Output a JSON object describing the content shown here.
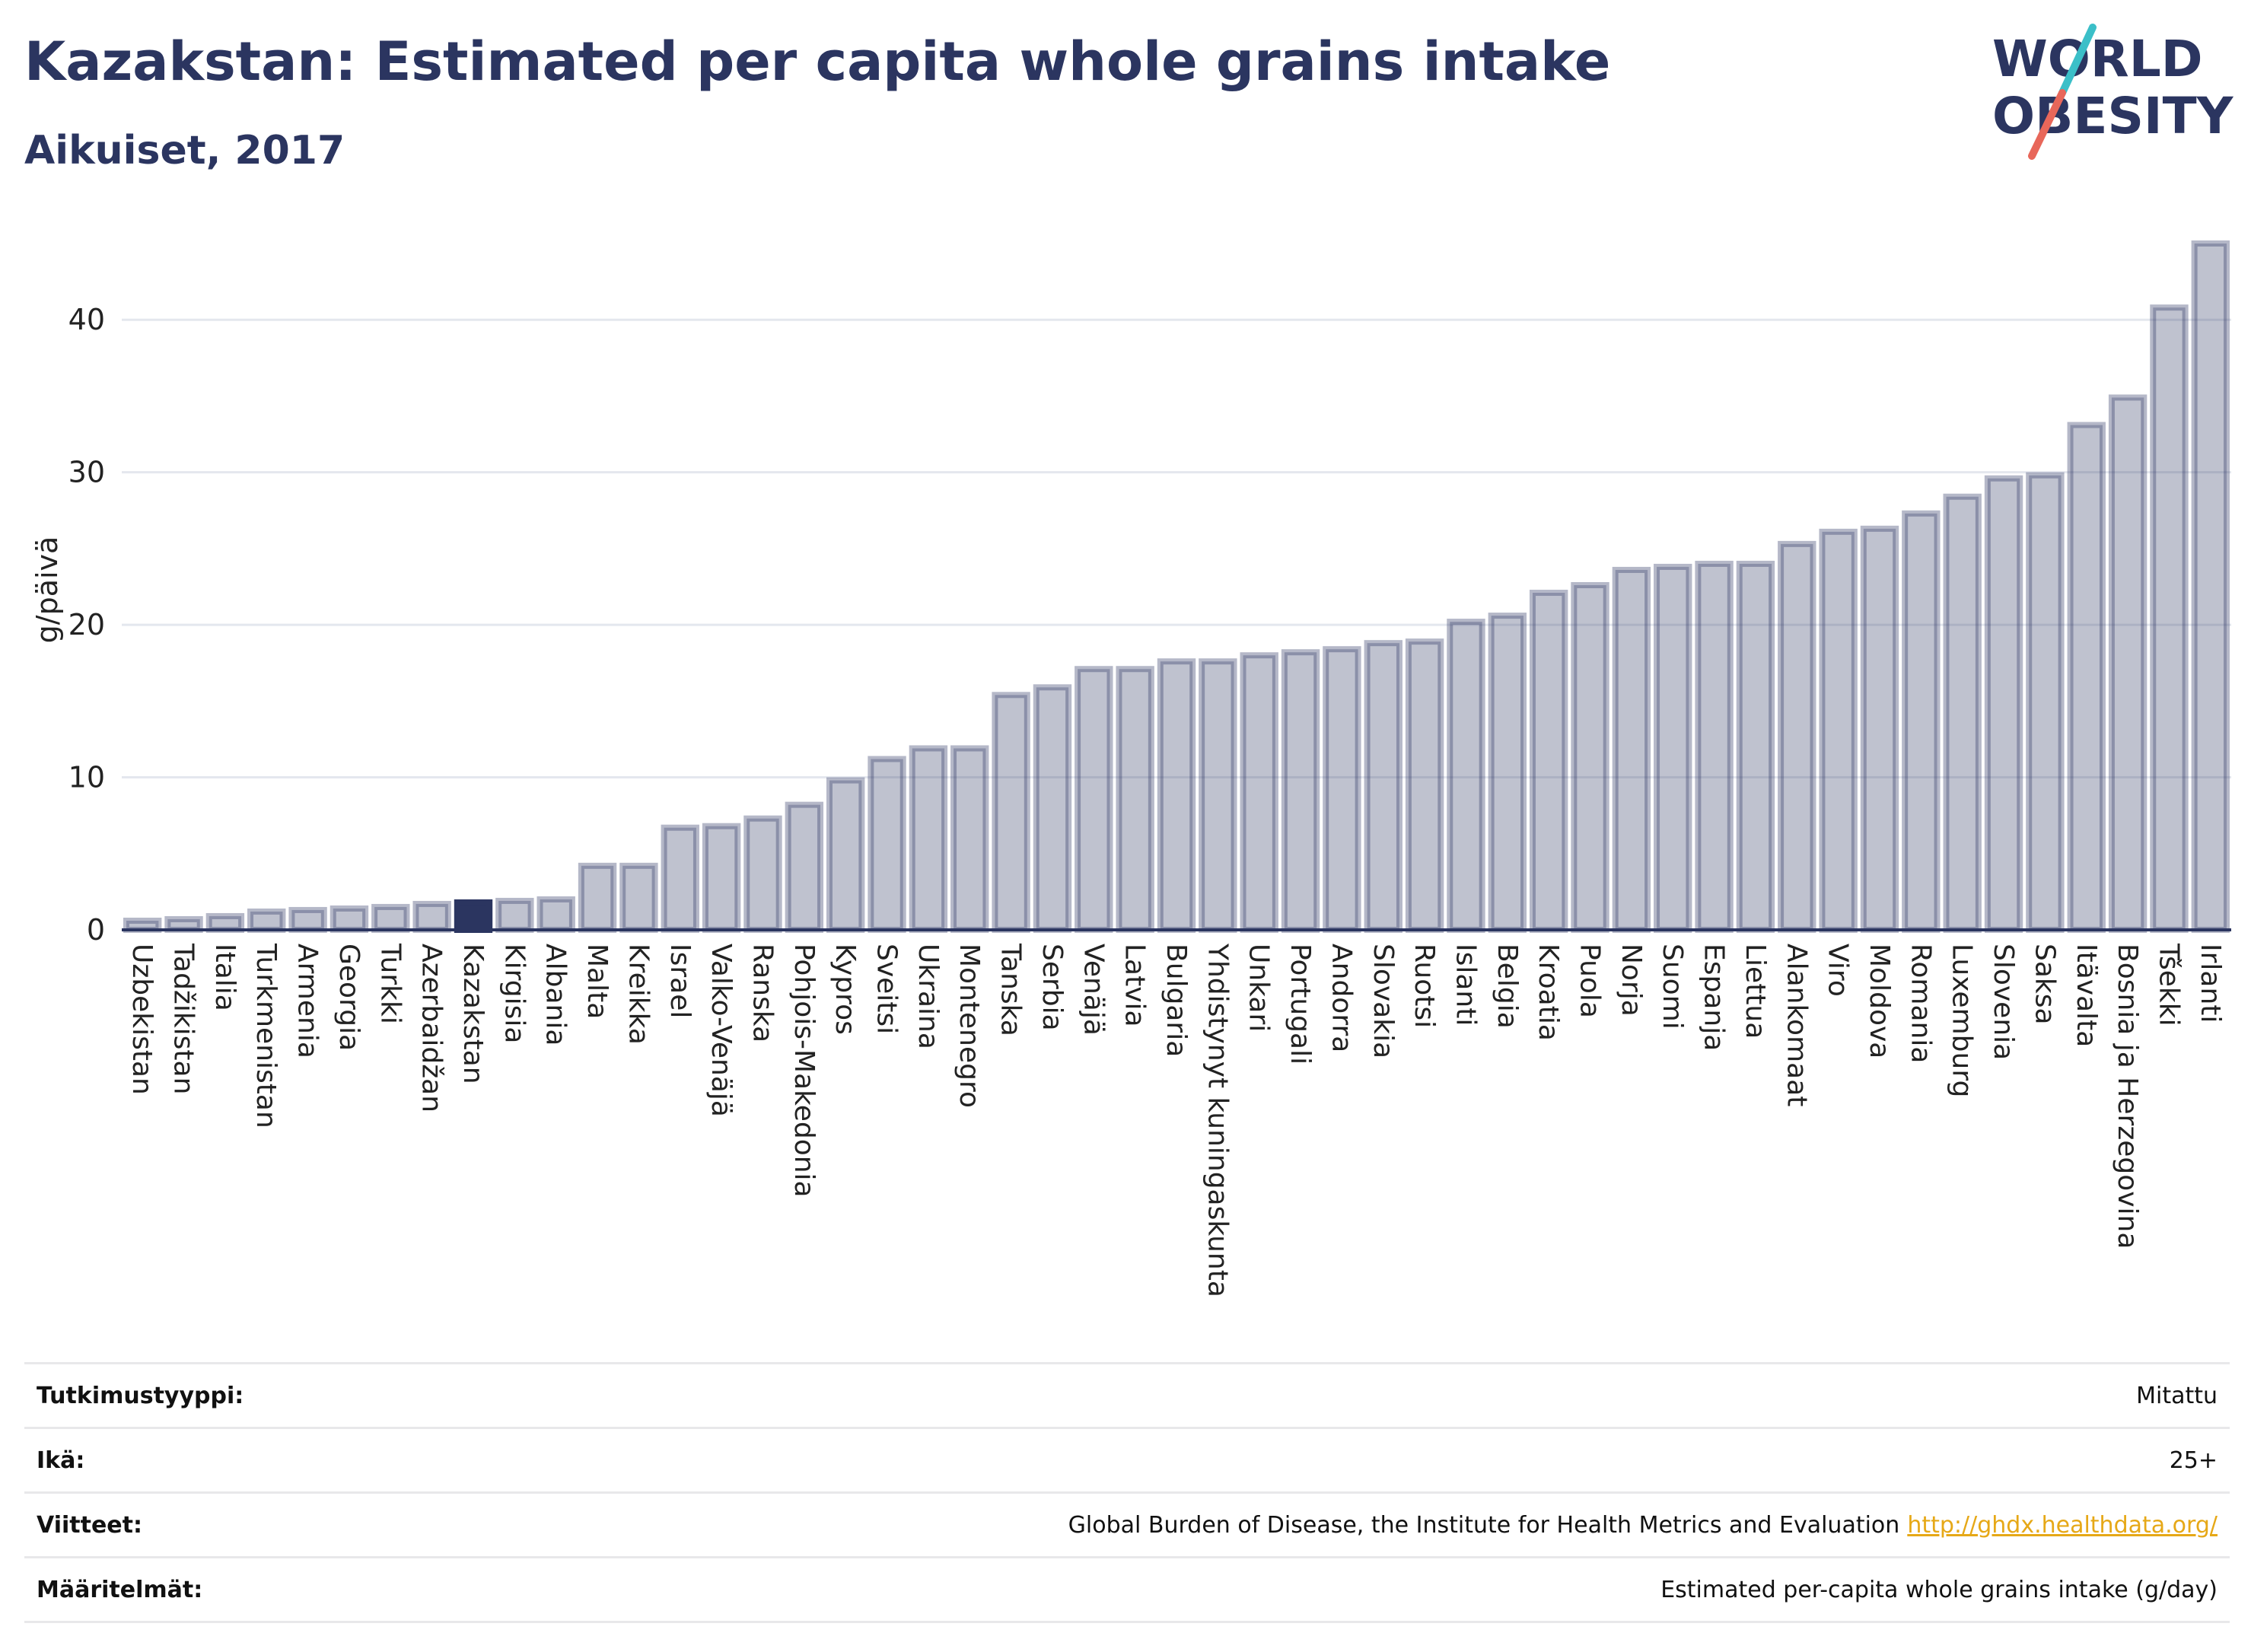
{
  "header": {
    "title": "Kazakstan: Estimated per capita whole grains intake",
    "subtitle": "Aikuiset, 2017"
  },
  "logo": {
    "line1": "WORLD",
    "line2": "OBESITY",
    "accent_red": "#e8675a",
    "accent_teal": "#3bbfc8"
  },
  "colors": {
    "bar": "#2b3560",
    "highlight": "#2b3560"
  },
  "chart_data": {
    "type": "bar",
    "ylabel": "g/päivä",
    "ylim": [
      0,
      45
    ],
    "yticks": [
      0,
      10,
      20,
      30,
      40
    ],
    "grid": true,
    "highlight": "Kazakstan",
    "categories": [
      "Uzbekistan",
      "Tadžikistan",
      "Italia",
      "Turkmenistan",
      "Armenia",
      "Georgia",
      "Turkki",
      "Azerbaidžan",
      "Kazakstan",
      "Kirgisia",
      "Albania",
      "Malta",
      "Kreikka",
      "Israel",
      "Valko-Venäjä",
      "Ranska",
      "Pohjois-Makedonia",
      "Kypros",
      "Sveitsi",
      "Ukraina",
      "Montenegro",
      "Tanska",
      "Serbia",
      "Venäjä",
      "Latvia",
      "Bulgaria",
      "Yhdistynyt kuningaskunta",
      "Unkari",
      "Portugali",
      "Andorra",
      "Slovakia",
      "Ruotsi",
      "Islanti",
      "Belgia",
      "Kroatia",
      "Puola",
      "Norja",
      "Suomi",
      "Espanja",
      "Liettua",
      "Alankomaat",
      "Viro",
      "Moldova",
      "Romania",
      "Luxemburg",
      "Slovenia",
      "Saksa",
      "Itävalta",
      "Bosnia ja Herzegovina",
      "Tšekki",
      "Irlanti"
    ],
    "values": [
      0.6,
      0.7,
      0.9,
      1.2,
      1.3,
      1.4,
      1.5,
      1.7,
      1.8,
      1.9,
      2.0,
      4.2,
      4.2,
      6.7,
      6.8,
      7.3,
      8.2,
      9.8,
      11.2,
      11.9,
      11.9,
      15.4,
      15.9,
      17.1,
      17.1,
      17.6,
      17.6,
      18.0,
      18.2,
      18.4,
      18.8,
      18.9,
      20.2,
      20.6,
      22.1,
      22.6,
      23.6,
      23.8,
      24.0,
      24.0,
      25.3,
      26.1,
      26.3,
      27.3,
      28.4,
      29.6,
      29.8,
      33.1,
      34.9,
      40.8,
      45.0
    ]
  },
  "info": {
    "rows": [
      {
        "label": "Tutkimustyyppi:",
        "value": "Mitattu"
      },
      {
        "label": "Ikä:",
        "value": "25+"
      },
      {
        "label": "Viitteet:",
        "value": "Global Burden of Disease, the Institute for Health Metrics and Evaluation",
        "link": "http://ghdx.healthdata.org/"
      },
      {
        "label": "Määritelmät:",
        "value": "Estimated per-capita whole grains intake (g/day)"
      }
    ]
  }
}
